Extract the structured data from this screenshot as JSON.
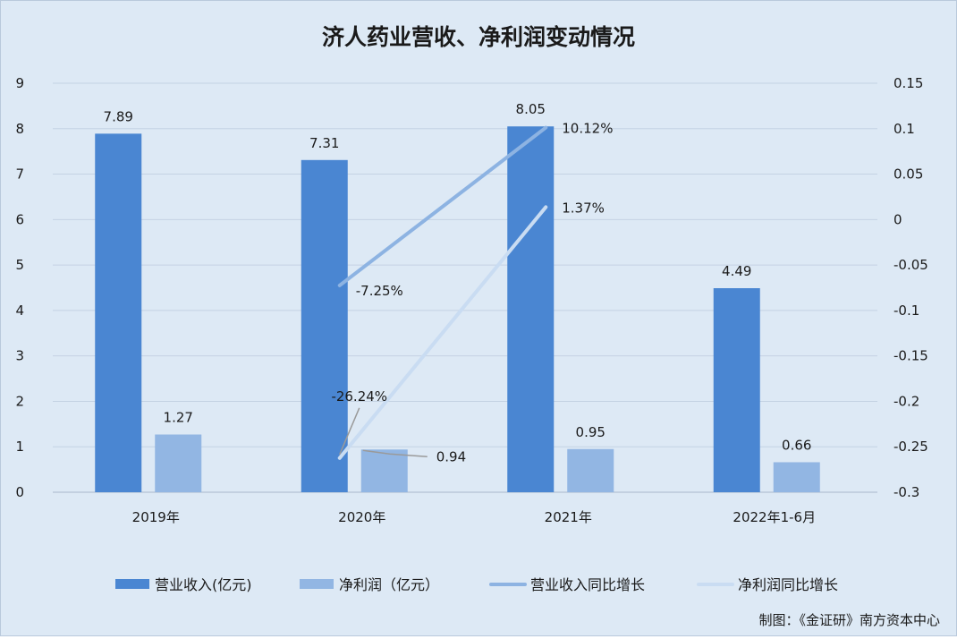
{
  "chart_data": {
    "type": "bar",
    "title": "济人药业营收、净利润变动情况",
    "categories": [
      "2019年",
      "2020年",
      "2021年",
      "2022年1-6月"
    ],
    "series": [
      {
        "name": "营业收入(亿元)",
        "kind": "bar",
        "axis": "left",
        "color": "#4a86d2",
        "values": [
          7.89,
          7.31,
          8.05,
          4.49
        ],
        "labels": [
          "7.89",
          "7.31",
          "8.05",
          "4.49"
        ]
      },
      {
        "name": "净利润（亿元）",
        "kind": "bar",
        "axis": "left",
        "color": "#92b6e3",
        "values": [
          1.27,
          0.94,
          0.95,
          0.66
        ],
        "labels": [
          "1.27",
          "0.94",
          "0.95",
          "0.66"
        ]
      },
      {
        "name": "营业收入同比增长",
        "kind": "line",
        "axis": "right",
        "color": "#8db3e2",
        "values": [
          null,
          -0.0725,
          0.1012,
          null
        ],
        "labels": [
          null,
          "-7.25%",
          "10.12%",
          null
        ]
      },
      {
        "name": "净利润同比增长",
        "kind": "line",
        "axis": "right",
        "color": "#c9dcf2",
        "values": [
          null,
          -0.2624,
          0.0137,
          null
        ],
        "labels": [
          null,
          "-26.24%",
          "1.37%",
          null
        ]
      }
    ],
    "y_left": {
      "ylim": [
        0,
        9
      ],
      "ticks": [
        "0",
        "1",
        "2",
        "3",
        "4",
        "5",
        "6",
        "7",
        "8",
        "9"
      ]
    },
    "y_right": {
      "ylim": [
        -0.3,
        0.15
      ],
      "ticks": [
        "-0.3",
        "-0.25",
        "-0.2",
        "-0.15",
        "-0.1",
        "-0.05",
        "0",
        "0.05",
        "0.1",
        "0.15"
      ]
    },
    "grid": true,
    "legend_position": "bottom"
  },
  "source_note": "制图：《金证研》南方资本中心"
}
